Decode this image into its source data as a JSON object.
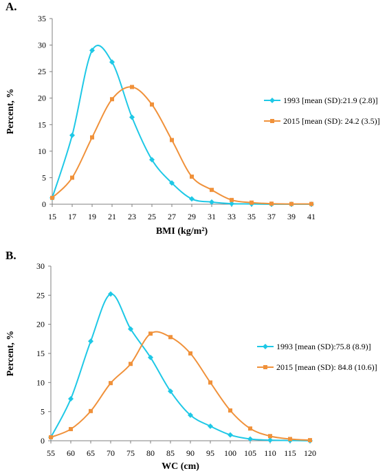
{
  "chart_data": [
    {
      "type": "line",
      "panel_label": "A.",
      "xlabel": "BMI (kg/m²)",
      "ylabel": "Percent, %",
      "x": [
        15,
        17,
        19,
        21,
        23,
        25,
        27,
        29,
        31,
        33,
        35,
        37,
        39,
        41
      ],
      "xlim": [
        15,
        41
      ],
      "ylim": [
        0,
        35
      ],
      "yticks": [
        0,
        5,
        10,
        15,
        20,
        25,
        30,
        35
      ],
      "grid": false,
      "legend_position": "right",
      "series": [
        {
          "name": "1993 [mean (SD):21.9 (2.8)]",
          "color": "#1ec8e6",
          "marker": "diamond",
          "values": [
            1.2,
            13.0,
            29.0,
            26.8,
            16.4,
            8.4,
            4.0,
            1.0,
            0.4,
            0.1,
            0.05,
            0.0,
            0.0,
            0.0
          ]
        },
        {
          "name": "2015 [mean (SD): 24.2 (3.5)]",
          "color": "#f0913a",
          "marker": "square",
          "values": [
            1.2,
            5.0,
            12.6,
            19.8,
            22.1,
            18.8,
            12.1,
            5.2,
            2.7,
            0.8,
            0.3,
            0.1,
            0.05,
            0.05
          ]
        }
      ]
    },
    {
      "type": "line",
      "panel_label": "B.",
      "xlabel": "WC (cm)",
      "ylabel": "Percent, %",
      "x": [
        55,
        60,
        65,
        70,
        75,
        80,
        85,
        90,
        95,
        100,
        105,
        110,
        115,
        120
      ],
      "xlim": [
        55,
        120
      ],
      "ylim": [
        0,
        30
      ],
      "yticks": [
        0,
        5,
        10,
        15,
        20,
        25,
        30
      ],
      "grid": false,
      "legend_position": "right",
      "series": [
        {
          "name": "1993 [mean (SD):75.8 (8.9)]",
          "color": "#1ec8e6",
          "marker": "diamond",
          "values": [
            0.6,
            7.2,
            17.1,
            25.2,
            19.2,
            14.3,
            8.5,
            4.4,
            2.5,
            1.0,
            0.3,
            0.1,
            0.05,
            0.0
          ]
        },
        {
          "name": "2015 [mean (SD): 84.8 (10.6)]",
          "color": "#f0913a",
          "marker": "square",
          "values": [
            0.6,
            2.0,
            5.1,
            9.9,
            13.2,
            18.4,
            17.8,
            15.0,
            10.0,
            5.2,
            2.1,
            0.8,
            0.3,
            0.1
          ]
        }
      ]
    }
  ]
}
